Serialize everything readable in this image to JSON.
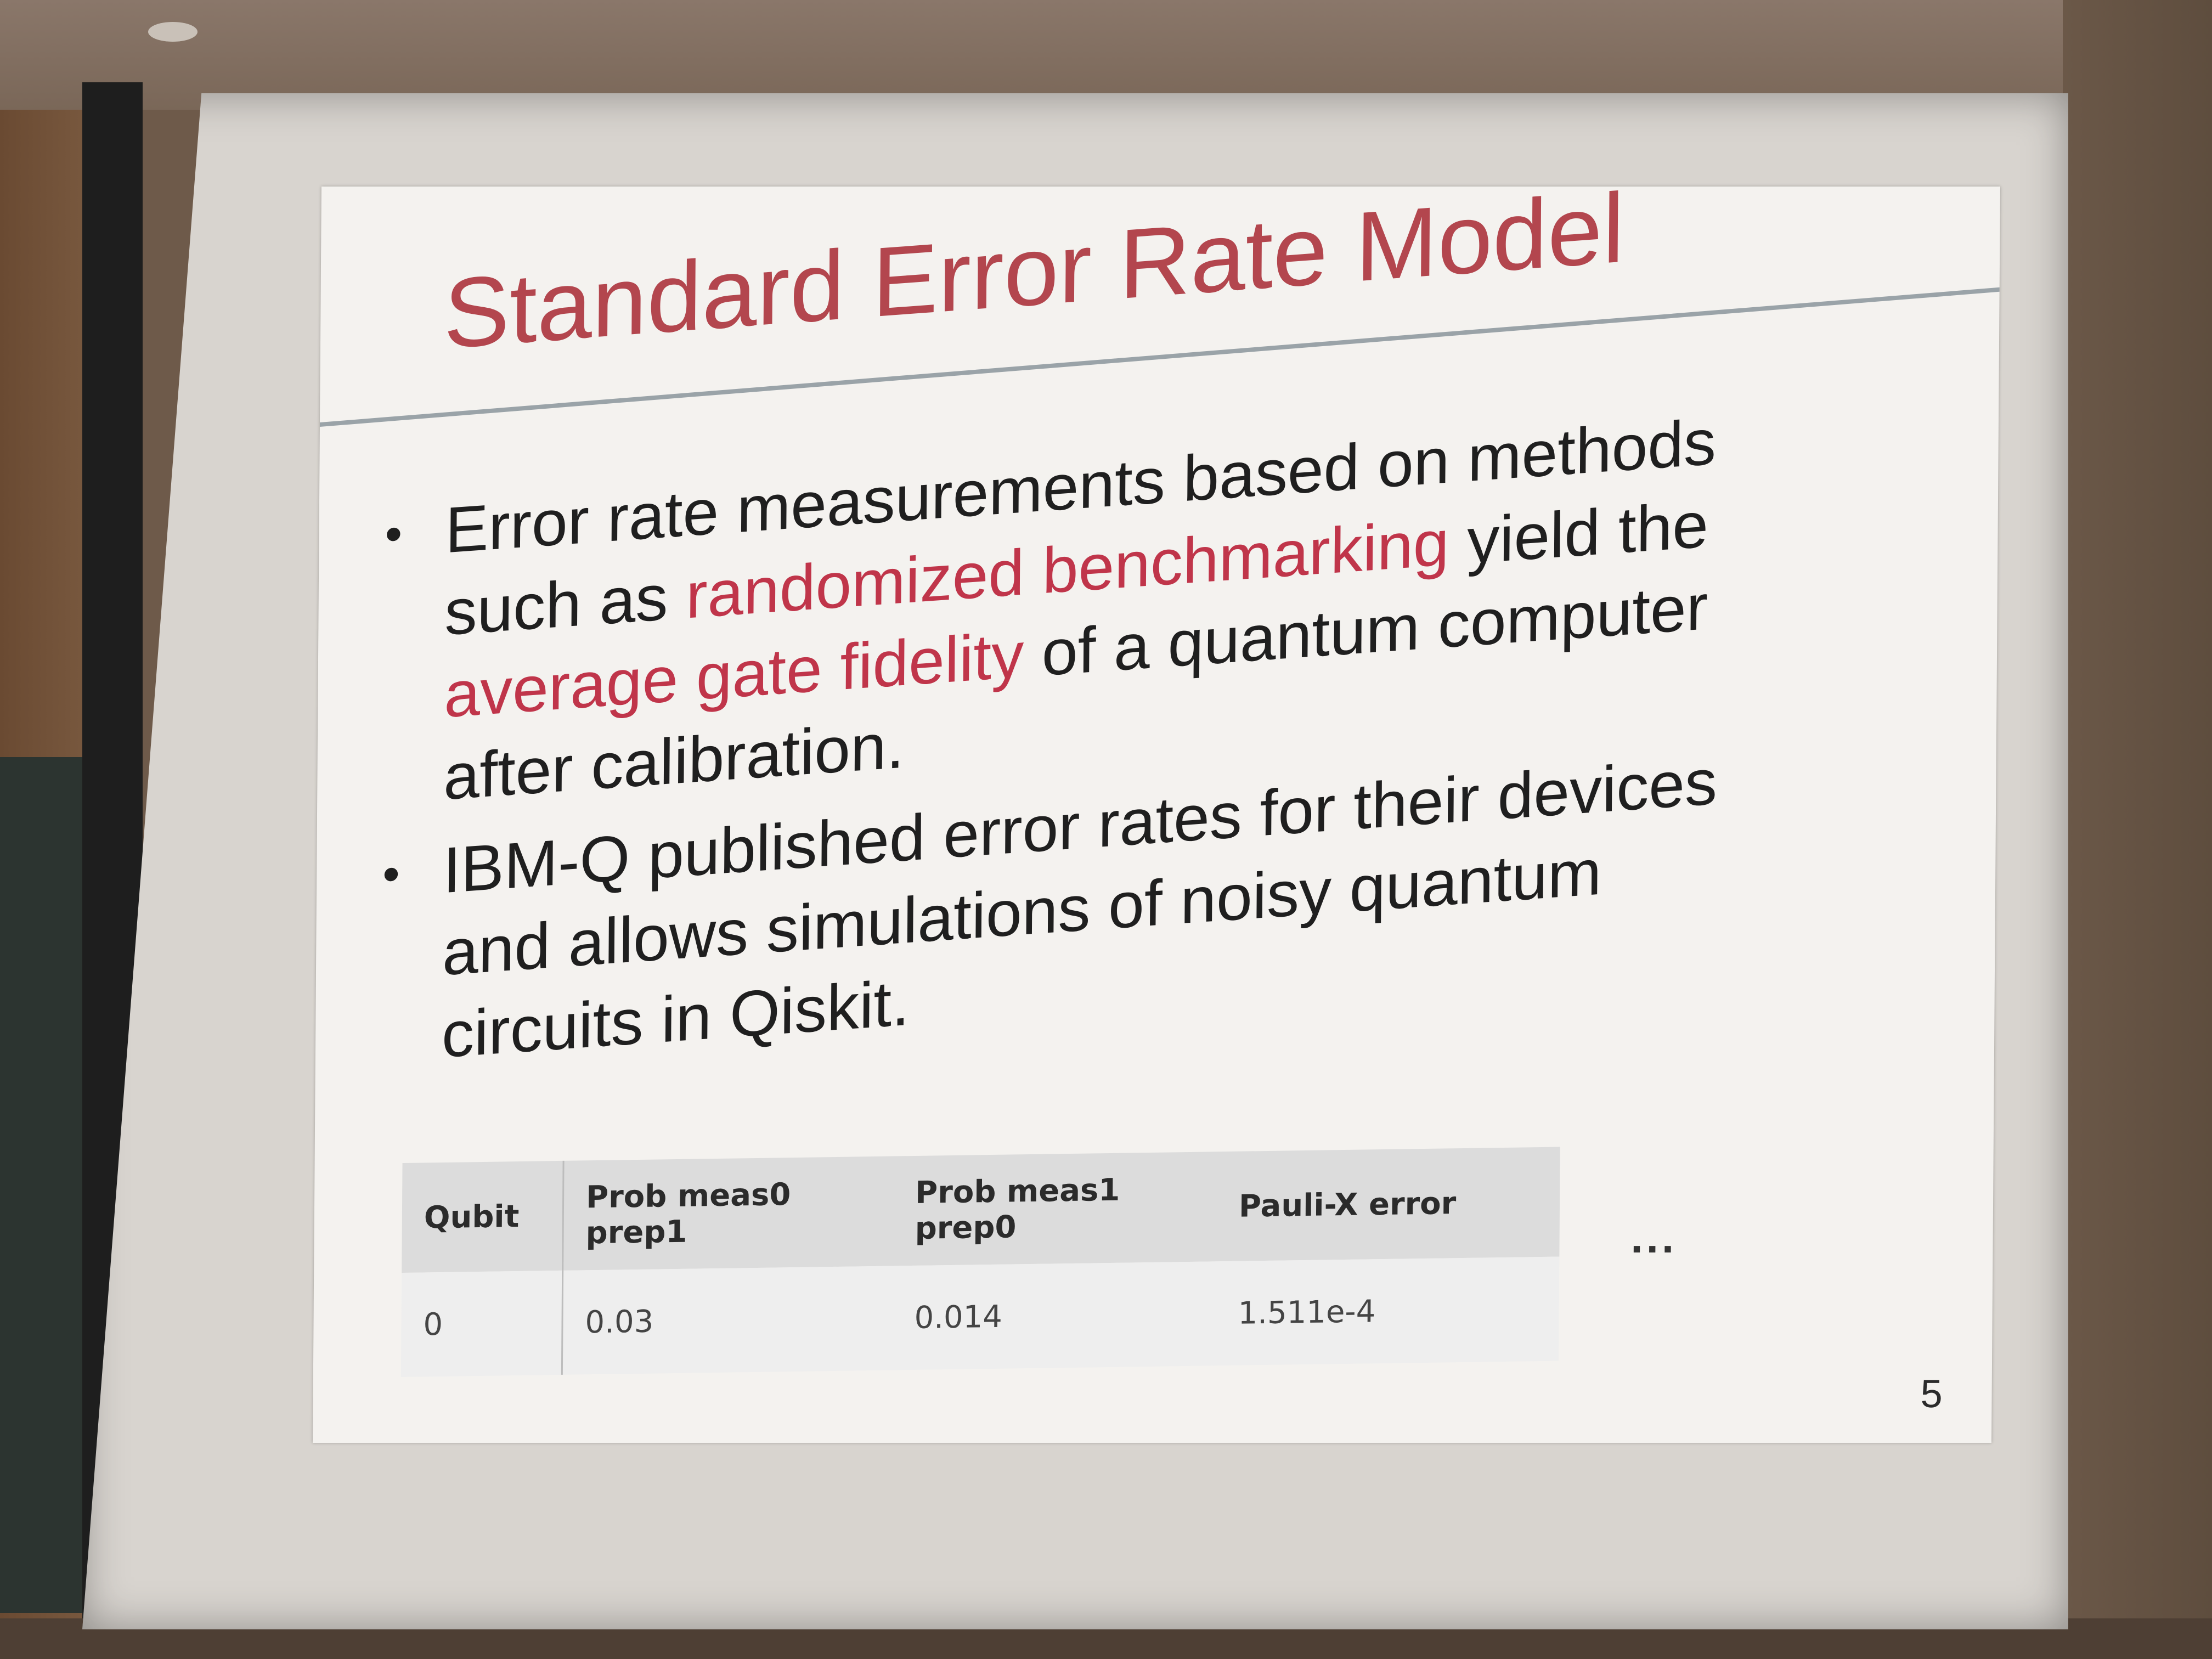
{
  "slide": {
    "title": "Standard Error Rate Model",
    "bullet1": {
      "part1": "Error rate measurements based on methods such as ",
      "highlight1": "randomized benchmarking",
      "part2": " yield the ",
      "highlight2": "average gate fidelity",
      "part3": " of a quantum computer after calibration."
    },
    "bullet2": "IBM-Q published error rates for their devices and allows simulations of noisy quantum circuits in Qiskit.",
    "bullet_glyph": "•",
    "table": {
      "headers": [
        "Qubit",
        "Prob meas0 prep1",
        "Prob meas1 prep0",
        "Pauli-X error"
      ],
      "rows": [
        [
          "0",
          "0.03",
          "0.014",
          "1.511e-4"
        ]
      ]
    },
    "ellipsis": "...",
    "page_number": "5",
    "colors": {
      "title": "#b3464e",
      "highlight": "#c0354a"
    }
  }
}
